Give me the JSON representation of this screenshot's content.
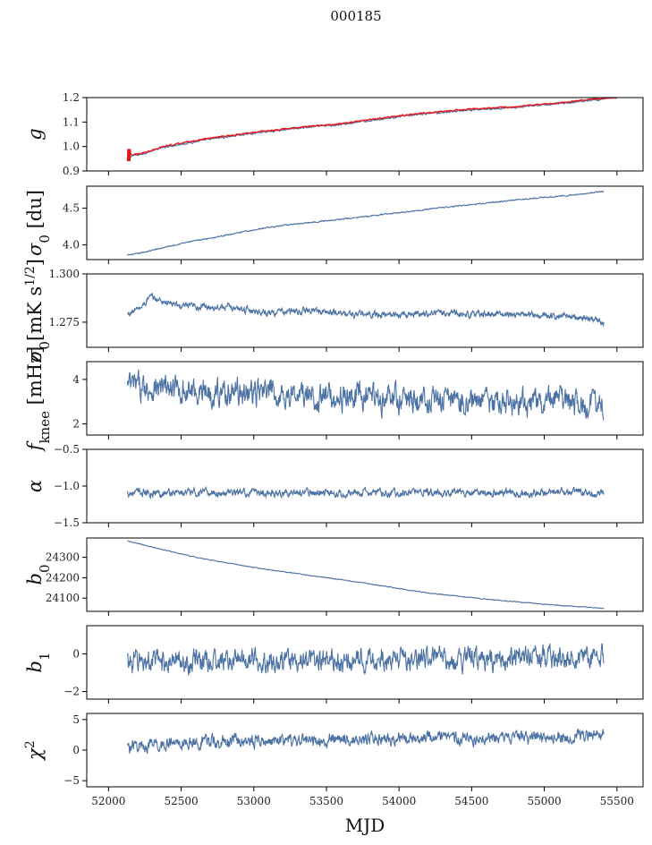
{
  "figure": {
    "title": "000185",
    "xlabel": "MJD",
    "xlim": [
      51850,
      55680
    ],
    "xticks": [
      52000,
      52500,
      53000,
      53500,
      54000,
      54500,
      55000,
      55500
    ],
    "line_color": "#4c72a4",
    "fit_color": "#e8161c",
    "mjd_start": 52130,
    "mjd_end": 55410
  },
  "chart_data": [
    {
      "type": "line",
      "ylabel": "g",
      "ylabel_math": "g",
      "ylim": [
        0.9,
        1.2
      ],
      "yticks": [
        0.9,
        1.0,
        1.1,
        1.2
      ],
      "ytick_labels": [
        "0.9",
        "1.0",
        "1.1",
        "1.2"
      ],
      "series": [
        {
          "x": [
            52130,
            52200,
            52400,
            52700,
            53000,
            53300,
            53600,
            53900,
            54200,
            54500,
            54800,
            55100,
            55410
          ],
          "values": [
            0.96,
            0.965,
            1.0,
            1.03,
            1.055,
            1.075,
            1.09,
            1.115,
            1.135,
            1.15,
            1.16,
            1.175,
            1.195
          ],
          "noise": 0.003
        },
        {
          "x": [
            52130,
            52200,
            52400,
            52700,
            53000,
            53300,
            53600,
            53900,
            54200,
            54500,
            54800,
            55100,
            55400,
            55500
          ],
          "values": [
            0.965,
            0.968,
            1.003,
            1.034,
            1.058,
            1.078,
            1.093,
            1.118,
            1.138,
            1.153,
            1.163,
            1.178,
            1.198,
            1.2
          ],
          "noise": 0.002,
          "spike_at": 52130,
          "spike_range": [
            0.94,
            0.99
          ],
          "color": "fit"
        }
      ]
    },
    {
      "type": "line",
      "ylabel": "σ0 [du]",
      "ylabel_math": "σ<sub>0</sub> [du]",
      "ylim": [
        3.8,
        4.8
      ],
      "yticks": [
        4.0,
        4.5
      ],
      "ytick_labels": [
        "4.0",
        "4.5"
      ],
      "series": [
        {
          "x": [
            52130,
            52200,
            52500,
            52800,
            53100,
            53400,
            53700,
            54000,
            54300,
            54600,
            54900,
            55200,
            55410
          ],
          "values": [
            3.86,
            3.88,
            4.02,
            4.13,
            4.24,
            4.31,
            4.37,
            4.44,
            4.51,
            4.57,
            4.63,
            4.68,
            4.73
          ],
          "noise": 0.006
        }
      ]
    },
    {
      "type": "line",
      "ylabel": "σ0[mK s1/2]",
      "ylabel_math": "σ<sub>0</sub>[mK s<sup>1/2</sup>]",
      "ylim": [
        1.262,
        1.3
      ],
      "yticks": [
        1.275,
        1.3
      ],
      "ytick_labels": [
        "1.275",
        "1.300"
      ],
      "series": [
        {
          "x": [
            52130,
            52230,
            52280,
            52500,
            52800,
            53100,
            53400,
            53700,
            54000,
            54300,
            54600,
            54900,
            55200,
            55350,
            55410
          ],
          "values": [
            1.279,
            1.283,
            1.288,
            1.283,
            1.283,
            1.28,
            1.281,
            1.279,
            1.279,
            1.28,
            1.279,
            1.279,
            1.278,
            1.276,
            1.275
          ],
          "noise": 0.0013
        }
      ]
    },
    {
      "type": "line",
      "ylabel": "fknee [mHz]",
      "ylabel_math": "f<sub>knee</sub> [mHz]",
      "ylim": [
        1.5,
        4.8
      ],
      "yticks": [
        2,
        4
      ],
      "ytick_labels": [
        "2",
        "4"
      ],
      "series": [
        {
          "x": [
            52130,
            52500,
            53000,
            53500,
            54000,
            54500,
            55000,
            55410
          ],
          "values": [
            3.7,
            3.5,
            3.4,
            3.2,
            3.1,
            3.0,
            3.0,
            2.8
          ],
          "noise": 0.45
        }
      ]
    },
    {
      "type": "line",
      "ylabel": "α",
      "ylabel_math": "α",
      "ylim": [
        -1.5,
        -0.5
      ],
      "yticks": [
        -1.5,
        -1.0,
        -0.5
      ],
      "ytick_labels": [
        "−1.5",
        "−1.0",
        "−0.5"
      ],
      "series": [
        {
          "x": [
            52130,
            55410
          ],
          "values": [
            -1.09,
            -1.09
          ],
          "noise": 0.04
        }
      ]
    },
    {
      "type": "line",
      "ylabel": "b0",
      "ylabel_math": "b<sub>0</sub>",
      "ylim": [
        24035,
        24395
      ],
      "yticks": [
        24100,
        24200,
        24300
      ],
      "ytick_labels": [
        "24100",
        "24200",
        "24300"
      ],
      "series": [
        {
          "x": [
            52130,
            52300,
            52600,
            53000,
            53400,
            53800,
            54200,
            54600,
            55000,
            55410
          ],
          "values": [
            24380,
            24350,
            24300,
            24250,
            24210,
            24170,
            24125,
            24095,
            24070,
            24050
          ],
          "noise": 1.5
        }
      ]
    },
    {
      "type": "line",
      "ylabel": "b1",
      "ylabel_math": "b<sub>1</sub>",
      "ylim": [
        -2.4,
        1.5
      ],
      "yticks": [
        -2,
        0
      ],
      "ytick_labels": [
        "−2",
        "0"
      ],
      "series": [
        {
          "x": [
            52130,
            55410
          ],
          "values": [
            -0.4,
            -0.2
          ],
          "noise": 0.45
        }
      ]
    },
    {
      "type": "line",
      "ylabel": "χ2",
      "ylabel_math": "χ<sup>2</sup>",
      "ylim": [
        -6,
        6
      ],
      "yticks": [
        -5,
        0,
        5
      ],
      "ytick_labels": [
        "−5",
        "0",
        "5"
      ],
      "series": [
        {
          "x": [
            52130,
            52500,
            53000,
            54000,
            55000,
            55410
          ],
          "values": [
            0.5,
            1.2,
            1.5,
            2.0,
            2.0,
            2.8
          ],
          "noise": 0.8
        }
      ]
    }
  ]
}
